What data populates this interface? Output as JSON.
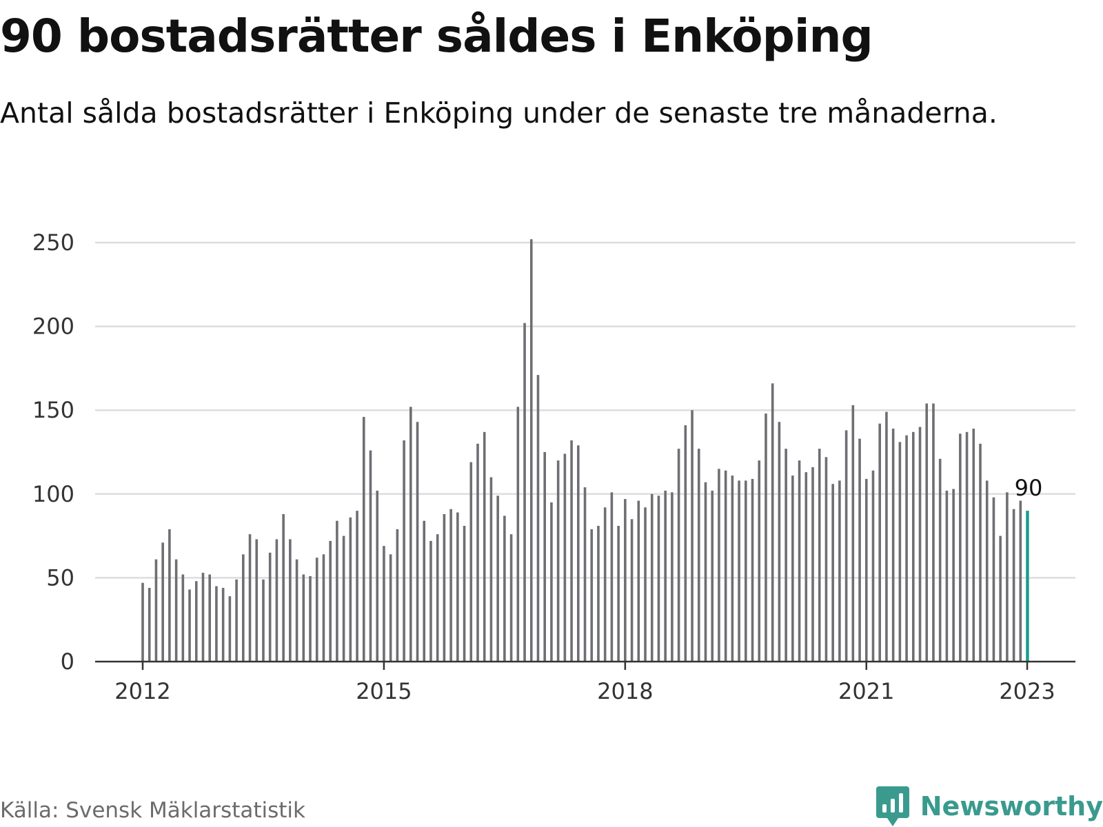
{
  "header": {
    "title": "90 bostadsrätter såldes i Enköping",
    "subtitle": "Antal sålda bostadsrätter i Enköping under de senaste tre månaderna."
  },
  "footer": {
    "source": "Källa: Svensk Mäklarstatistik",
    "brand": "Newsworthy"
  },
  "colors": {
    "bar": "#6e6e73",
    "highlight": "#1a9b8f",
    "grid": "#dddddd",
    "axis": "#333333",
    "brand": "#3a9a8e"
  },
  "chart_data": {
    "type": "bar",
    "title": "90 bostadsrätter såldes i Enköping",
    "subtitle": "Antal sålda bostadsrätter i Enköping under de senaste tre månaderna.",
    "xlabel": "",
    "ylabel": "",
    "ylim": [
      0,
      250
    ],
    "yticks": [
      0,
      50,
      100,
      150,
      200,
      250
    ],
    "xticks": [
      {
        "label": "2012",
        "index": 0
      },
      {
        "label": "2015",
        "index": 36
      },
      {
        "label": "2018",
        "index": 72
      },
      {
        "label": "2021",
        "index": 108
      },
      {
        "label": "2023",
        "index": 132
      }
    ],
    "grid": true,
    "start": "2012-01",
    "end": "2023-01",
    "highlight": {
      "index": 132,
      "label": "90"
    },
    "values": [
      47,
      44,
      61,
      71,
      79,
      61,
      52,
      43,
      48,
      53,
      52,
      45,
      44,
      39,
      49,
      64,
      76,
      73,
      49,
      65,
      73,
      88,
      73,
      61,
      52,
      51,
      62,
      64,
      72,
      84,
      75,
      86,
      90,
      146,
      126,
      102,
      69,
      64,
      79,
      132,
      152,
      143,
      84,
      72,
      76,
      88,
      91,
      89,
      81,
      119,
      130,
      137,
      110,
      99,
      87,
      76,
      152,
      202,
      252,
      171,
      125,
      95,
      120,
      124,
      132,
      129,
      104,
      79,
      81,
      92,
      101,
      81,
      97,
      85,
      96,
      92,
      100,
      99,
      102,
      101,
      127,
      141,
      150,
      127,
      107,
      102,
      115,
      114,
      111,
      108,
      108,
      109,
      120,
      148,
      166,
      143,
      127,
      111,
      120,
      113,
      116,
      127,
      122,
      106,
      108,
      138,
      153,
      133,
      109,
      114,
      142,
      149,
      139,
      131,
      135,
      137,
      140,
      154,
      154,
      121,
      102,
      103,
      136,
      137,
      139,
      130,
      108,
      98,
      75,
      101,
      91,
      96,
      90
    ]
  }
}
